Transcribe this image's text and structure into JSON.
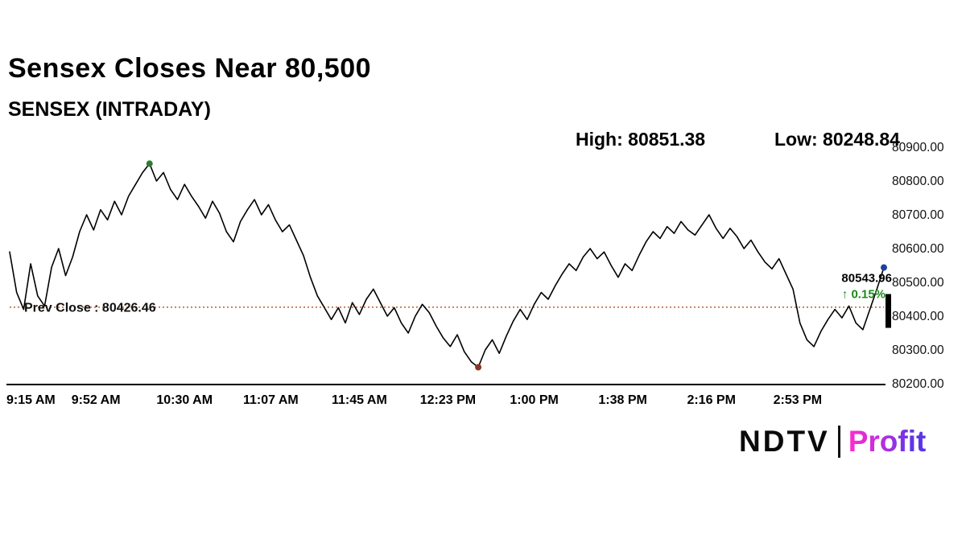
{
  "header": {
    "title": "Sensex Closes Near 80,500",
    "subtitle": "SENSEX (INTRADAY)",
    "high_label": "High: 80851.38",
    "low_label": "Low: 80248.84"
  },
  "footer": {
    "logo_ndtv": "NDTV",
    "logo_divider": "|",
    "logo_profit": "Profit"
  },
  "chart_data": {
    "type": "line",
    "title": "SENSEX (INTRADAY)",
    "line_color": "#000000",
    "x_tick_labels": [
      "9:15 AM",
      "9:52 AM",
      "10:30 AM",
      "11:07 AM",
      "11:45 AM",
      "12:23 PM",
      "1:00 PM",
      "1:38 PM",
      "2:16 PM",
      "2:53 PM"
    ],
    "x_tick_minutes": [
      0,
      37,
      75,
      112,
      150,
      188,
      225,
      263,
      301,
      338
    ],
    "y_tick_labels": [
      "80900.00",
      "80800.00",
      "80700.00",
      "80600.00",
      "80500.00",
      "80400.00",
      "80300.00",
      "80200.00"
    ],
    "y_ticks": [
      80900,
      80800,
      80700,
      80600,
      80500,
      80400,
      80300,
      80200
    ],
    "ylim": [
      80200,
      80900
    ],
    "xlim_minutes": [
      0,
      375
    ],
    "prev_close": {
      "label": "Prev Close : 80426.46",
      "value": 80426.46,
      "color": "#c05a28"
    },
    "high": {
      "value": 80851.38,
      "minute": 60,
      "color": "#2e7d32"
    },
    "low": {
      "value": 80248.84,
      "minute": 201,
      "color": "#8b3626"
    },
    "last": {
      "value": 80543.96,
      "label": "80543.96",
      "change_label": "↑ 0.15%",
      "change_color": "#1a8a1a",
      "minute": 375,
      "color": "#1f3fa0"
    },
    "start_minute": 0,
    "interval_minutes": 3,
    "series_values": [
      80590,
      80470,
      80420,
      80555,
      80460,
      80430,
      80545,
      80600,
      80520,
      80575,
      80650,
      80700,
      80655,
      80715,
      80685,
      80740,
      80700,
      80755,
      80790,
      80825,
      80851.38,
      80800,
      80825,
      80775,
      80745,
      80790,
      80755,
      80725,
      80690,
      80740,
      80705,
      80650,
      80620,
      80680,
      80715,
      80745,
      80700,
      80730,
      80685,
      80650,
      80670,
      80625,
      80580,
      80515,
      80460,
      80425,
      80390,
      80425,
      80380,
      80440,
      80405,
      80450,
      80480,
      80440,
      80400,
      80425,
      80380,
      80350,
      80400,
      80435,
      80410,
      80370,
      80335,
      80310,
      80345,
      80295,
      80265,
      80248.84,
      80300,
      80330,
      80290,
      80340,
      80385,
      80420,
      80390,
      80435,
      80470,
      80450,
      80490,
      80525,
      80555,
      80535,
      80575,
      80600,
      80570,
      80590,
      80550,
      80515,
      80555,
      80535,
      80580,
      80620,
      80650,
      80630,
      80665,
      80645,
      80680,
      80655,
      80640,
      80670,
      80700,
      80660,
      80630,
      80660,
      80635,
      80600,
      80625,
      80590,
      80560,
      80540,
      80570,
      80525,
      80480,
      80380,
      80330,
      80310,
      80355,
      80390,
      80420,
      80395,
      80430,
      80380,
      80360,
      80420,
      80480,
      80543.96
    ]
  }
}
